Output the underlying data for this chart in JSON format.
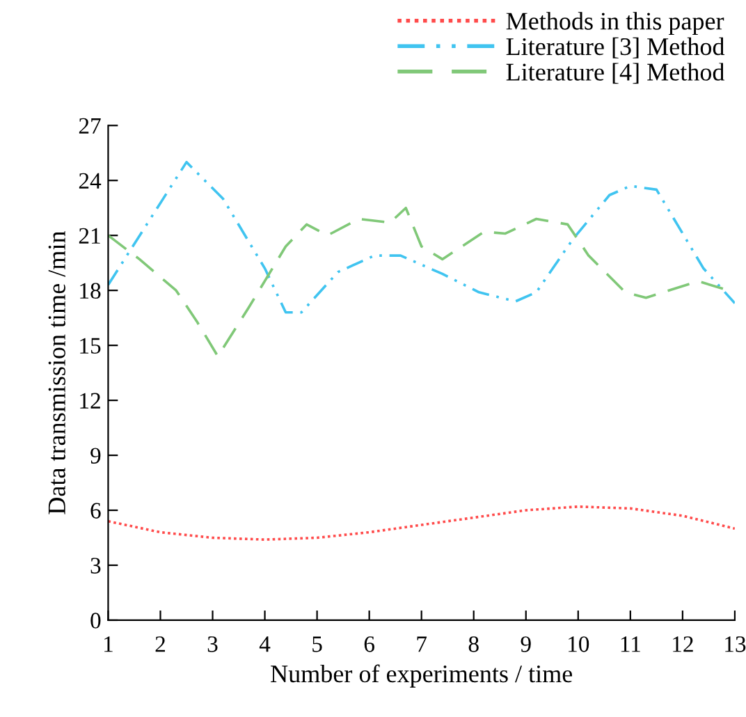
{
  "chart_data": {
    "type": "line",
    "xlabel": "Number of experiments / time",
    "ylabel": "Data transmission time /min",
    "xlim": [
      1,
      13
    ],
    "xticks": [
      1,
      2,
      3,
      4,
      5,
      6,
      7,
      8,
      9,
      10,
      11,
      12,
      13
    ],
    "ylim": [
      0,
      27
    ],
    "yticks": [
      0,
      3,
      6,
      9,
      12,
      15,
      18,
      21,
      24,
      27
    ],
    "grid": false,
    "legend": "top right",
    "marker": "none",
    "series": [
      {
        "name": "Methods in this paper",
        "color": "#ff4b4b",
        "line_style": "dotted",
        "x": [
          1,
          2,
          3,
          4,
          5,
          6,
          7,
          8,
          9,
          10,
          11,
          12,
          13
        ],
        "values": [
          5.4,
          4.8,
          4.5,
          4.4,
          4.5,
          4.8,
          5.2,
          5.6,
          6.0,
          6.2,
          6.1,
          5.7,
          5.0
        ]
      },
      {
        "name": "Literature [3] Method",
        "color": "#40c4f0",
        "line_style": "dashdot",
        "x": [
          1,
          2.5,
          3.2,
          4.0,
          4.4,
          4.7,
          5.4,
          6.1,
          6.6,
          7.4,
          8.1,
          8.8,
          9.2,
          9.9,
          10.6,
          11.0,
          11.5,
          12.4,
          13
        ],
        "values": [
          18.3,
          25.0,
          23.0,
          19.2,
          16.8,
          16.8,
          19.0,
          19.9,
          19.9,
          18.9,
          17.9,
          17.4,
          17.9,
          20.8,
          23.2,
          23.7,
          23.5,
          19.2,
          17.3
        ]
      },
      {
        "name": "Literature [4] Method",
        "color": "#80c878",
        "line_style": "dashed",
        "x": [
          1,
          1.6,
          2.3,
          2.7,
          3.1,
          3.7,
          4.4,
          4.8,
          5.2,
          5.8,
          6.4,
          6.7,
          7.0,
          7.4,
          8.2,
          8.6,
          9.2,
          9.8,
          10.2,
          10.9,
          11.3,
          12.3,
          13
        ],
        "values": [
          21.0,
          19.7,
          18.0,
          16.3,
          14.4,
          17.1,
          20.4,
          21.6,
          21.0,
          21.9,
          21.7,
          22.5,
          20.4,
          19.7,
          21.2,
          21.1,
          21.9,
          21.6,
          19.9,
          17.9,
          17.6,
          18.5,
          17.9
        ]
      }
    ]
  }
}
